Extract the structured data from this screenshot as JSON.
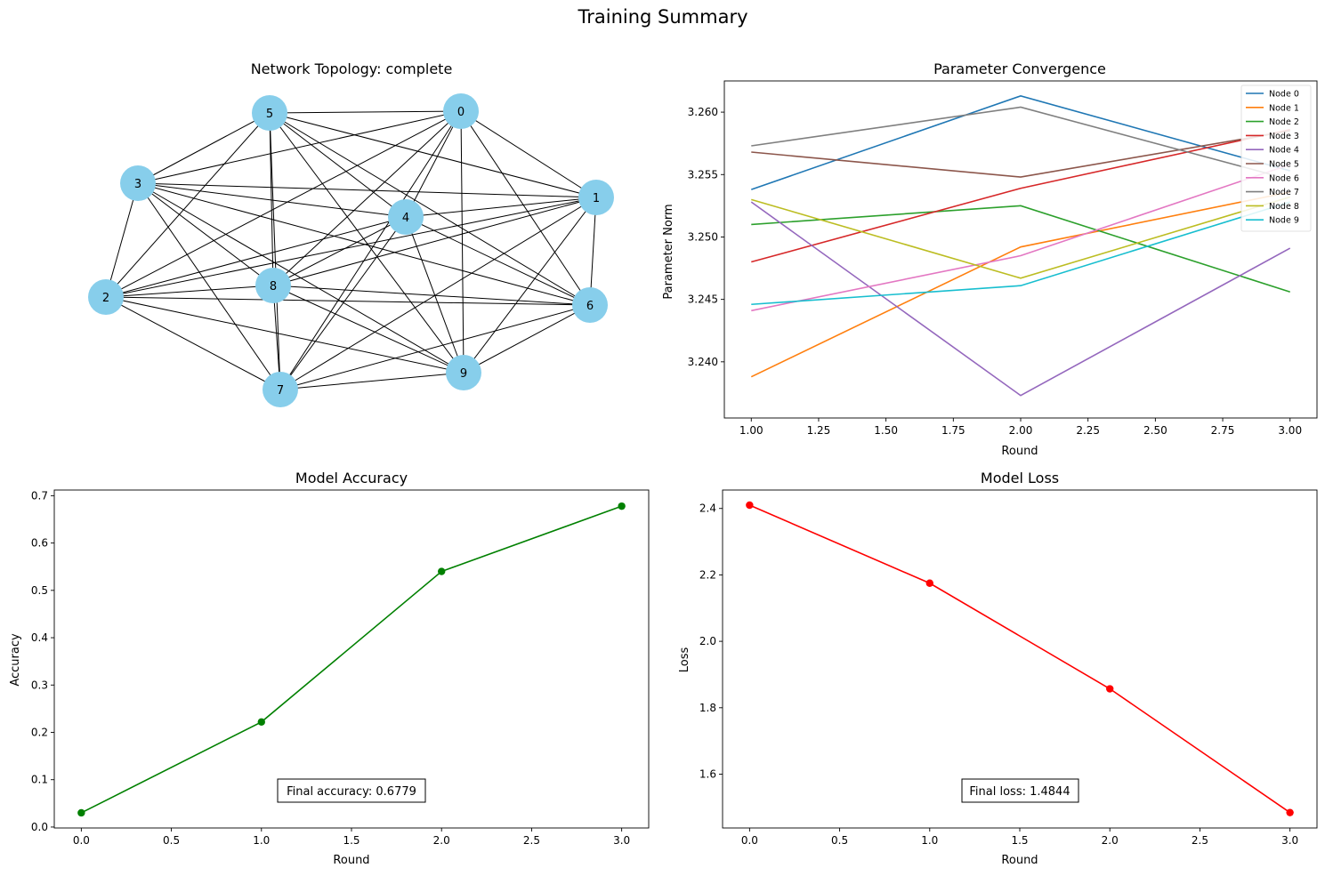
{
  "figure": {
    "title": "Training Summary"
  },
  "chart_data": [
    {
      "type": "network",
      "title": "Network Topology: complete",
      "node_color": "#87ceeb",
      "edge_color": "#000000",
      "nodes": [
        "0",
        "1",
        "2",
        "3",
        "4",
        "5",
        "6",
        "7",
        "8",
        "9"
      ],
      "edges": "complete"
    },
    {
      "type": "line",
      "title": "Parameter Convergence",
      "xlabel": "Round",
      "ylabel": "Parameter Norm",
      "xlim": [
        0.9,
        3.1
      ],
      "ylim": [
        3.2355,
        3.2625
      ],
      "xticks": [
        "1.00",
        "1.25",
        "1.50",
        "1.75",
        "2.00",
        "2.25",
        "2.50",
        "2.75",
        "3.00"
      ],
      "yticks": [
        "3.240",
        "3.245",
        "3.250",
        "3.255",
        "3.260"
      ],
      "legend_position": "top-right",
      "x": [
        1,
        2,
        3
      ],
      "series": [
        {
          "name": "Node 0",
          "color": "#1f77b4",
          "values": [
            3.2538,
            3.2613,
            3.2553
          ]
        },
        {
          "name": "Node 1",
          "color": "#ff7f0e",
          "values": [
            3.2388,
            3.2492,
            3.2536
          ]
        },
        {
          "name": "Node 2",
          "color": "#2ca02c",
          "values": [
            3.251,
            3.2525,
            3.2456
          ]
        },
        {
          "name": "Node 3",
          "color": "#d62728",
          "values": [
            3.248,
            3.2539,
            3.2586
          ]
        },
        {
          "name": "Node 4",
          "color": "#9467bd",
          "values": [
            3.2528,
            3.2373,
            3.2491
          ]
        },
        {
          "name": "Node 5",
          "color": "#8c564b",
          "values": [
            3.2568,
            3.2548,
            3.2585
          ]
        },
        {
          "name": "Node 6",
          "color": "#e377c2",
          "values": [
            3.2441,
            3.2485,
            3.2558
          ]
        },
        {
          "name": "Node 7",
          "color": "#7f7f7f",
          "values": [
            3.2573,
            3.2604,
            3.2546
          ]
        },
        {
          "name": "Node 8",
          "color": "#bcbd22",
          "values": [
            3.253,
            3.2467,
            3.2532
          ]
        },
        {
          "name": "Node 9",
          "color": "#17becf",
          "values": [
            3.2446,
            3.2461,
            3.2528
          ]
        }
      ]
    },
    {
      "type": "line",
      "title": "Model Accuracy",
      "xlabel": "Round",
      "ylabel": "Accuracy",
      "xlim": [
        -0.15,
        3.15
      ],
      "ylim": [
        -0.002,
        0.712
      ],
      "xticks": [
        "0.0",
        "0.5",
        "1.0",
        "1.5",
        "2.0",
        "2.5",
        "3.0"
      ],
      "yticks": [
        "0.0",
        "0.1",
        "0.2",
        "0.3",
        "0.4",
        "0.5",
        "0.6",
        "0.7"
      ],
      "x": [
        0,
        1,
        2,
        3
      ],
      "series": [
        {
          "color": "#008000",
          "marker": "circle",
          "values": [
            0.03,
            0.222,
            0.54,
            0.6779
          ]
        }
      ],
      "annotation": "Final accuracy: 0.6779"
    },
    {
      "type": "line",
      "title": "Model Loss",
      "xlabel": "Round",
      "ylabel": "Loss",
      "xlim": [
        -0.15,
        3.15
      ],
      "ylim": [
        1.438,
        2.4555
      ],
      "xticks": [
        "0.0",
        "0.5",
        "1.0",
        "1.5",
        "2.0",
        "2.5",
        "3.0"
      ],
      "yticks": [
        "1.6",
        "1.8",
        "2.0",
        "2.2",
        "2.4"
      ],
      "x": [
        0,
        1,
        2,
        3
      ],
      "series": [
        {
          "color": "#ff0000",
          "marker": "circle",
          "values": [
            2.41,
            2.175,
            1.857,
            1.4844
          ]
        }
      ],
      "annotation": "Final loss: 1.4844"
    }
  ]
}
